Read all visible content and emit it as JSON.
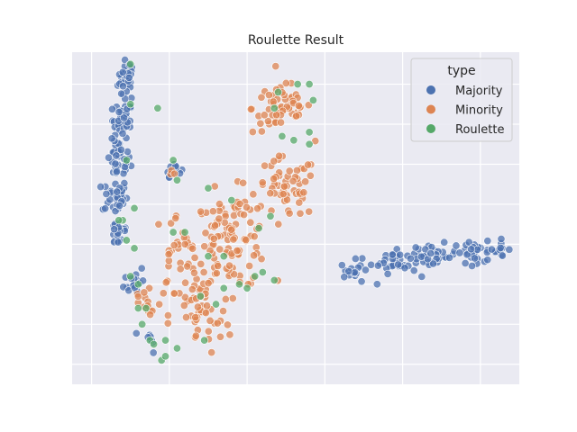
{
  "chart_data": {
    "type": "scatter",
    "title": "Roulette Result",
    "xlabel": "",
    "ylabel": "",
    "xlim": [
      -55,
      60
    ],
    "ylim": [
      -45,
      38
    ],
    "x_ticks": [
      -50,
      -30,
      -10,
      10,
      30,
      50
    ],
    "y_ticks": [
      -40,
      -30,
      -20,
      -10,
      0,
      10,
      20,
      30
    ],
    "tick_labels_visible": false,
    "grid": true,
    "legend": {
      "title": "type",
      "placement": "top-right"
    },
    "series": [
      {
        "name": "Majority",
        "color": "#4c72b0",
        "clusters": [
          {
            "cx": -41,
            "cy": 31,
            "sx": 1.1,
            "sy": 2.5,
            "n": 35
          },
          {
            "cx": -42,
            "cy": 21,
            "sx": 1.3,
            "sy": 2.2,
            "n": 30
          },
          {
            "cx": -43,
            "cy": 11,
            "sx": 1.5,
            "sy": 2.5,
            "n": 35
          },
          {
            "cx": -44,
            "cy": 2,
            "sx": 1.6,
            "sy": 2.2,
            "n": 35
          },
          {
            "cx": -43,
            "cy": -7,
            "sx": 1.3,
            "sy": 2.0,
            "n": 22
          },
          {
            "cx": -39,
            "cy": -19,
            "sx": 1.3,
            "sy": 2.0,
            "n": 16
          },
          {
            "cx": -35,
            "cy": -34,
            "sx": 1.0,
            "sy": 1.5,
            "n": 8
          },
          {
            "cx": -29,
            "cy": 9,
            "sx": 1.0,
            "sy": 1.0,
            "n": 10
          },
          {
            "cx": 18,
            "cy": -17,
            "sx": 2.0,
            "sy": 1.5,
            "n": 18
          },
          {
            "cx": 28,
            "cy": -14,
            "sx": 3.0,
            "sy": 1.6,
            "n": 35
          },
          {
            "cx": 38,
            "cy": -13,
            "sx": 3.0,
            "sy": 1.5,
            "n": 30
          },
          {
            "cx": 49,
            "cy": -12,
            "sx": 3.0,
            "sy": 1.3,
            "n": 28
          },
          {
            "cx": 55,
            "cy": -11,
            "sx": 1.3,
            "sy": 1.0,
            "n": 10
          }
        ]
      },
      {
        "name": "Minority",
        "color": "#dd8452",
        "clusters": [
          {
            "cx": -1,
            "cy": 24,
            "sx": 3.8,
            "sy": 3.2,
            "n": 60
          },
          {
            "cx": 0,
            "cy": 4,
            "sx": 4.0,
            "sy": 3.8,
            "n": 55
          },
          {
            "cx": -14,
            "cy": -9,
            "sx": 5.0,
            "sy": 6.0,
            "n": 110
          },
          {
            "cx": -28,
            "cy": -13,
            "sx": 3.0,
            "sy": 5.5,
            "n": 35
          },
          {
            "cx": -22,
            "cy": -28,
            "sx": 4.0,
            "sy": 5.0,
            "n": 45
          },
          {
            "cx": -36,
            "cy": -25,
            "sx": 2.0,
            "sy": 3.0,
            "n": 14
          },
          {
            "cx": -29,
            "cy": 8,
            "sx": 0.8,
            "sy": 0.6,
            "n": 3
          }
        ]
      },
      {
        "name": "Roulette",
        "color": "#55a868",
        "points": [
          [
            -40,
            35
          ],
          [
            -40,
            25
          ],
          [
            -33,
            24
          ],
          [
            -3,
            24
          ],
          [
            -2,
            28
          ],
          [
            3,
            30
          ],
          [
            6,
            30
          ],
          [
            7,
            26
          ],
          [
            -29,
            11
          ],
          [
            -28,
            6
          ],
          [
            -41,
            11
          ],
          [
            -39,
            -1
          ],
          [
            -42,
            -4
          ],
          [
            -41,
            -9
          ],
          [
            -43,
            -4
          ],
          [
            -39,
            -11
          ],
          [
            -40,
            -18
          ],
          [
            -38,
            -20
          ],
          [
            -38,
            -26
          ],
          [
            -36,
            -26
          ],
          [
            -37,
            -30
          ],
          [
            -35,
            -34
          ],
          [
            -34,
            -35
          ],
          [
            -28,
            -36
          ],
          [
            -32,
            -39
          ],
          [
            -31,
            -38
          ],
          [
            -31,
            -34
          ],
          [
            -21,
            -34
          ],
          [
            -12,
            -20
          ],
          [
            -16,
            -21
          ],
          [
            -22,
            -23
          ],
          [
            -18,
            -25
          ],
          [
            -16,
            -13
          ],
          [
            -20,
            -13
          ],
          [
            -29,
            -7
          ],
          [
            -26,
            -7
          ],
          [
            -20,
            4
          ],
          [
            -14,
            1
          ],
          [
            -7,
            -6
          ],
          [
            -8,
            -18
          ],
          [
            -10,
            -21
          ],
          [
            -4,
            -3
          ],
          [
            -6,
            -17
          ],
          [
            -3,
            -19
          ],
          [
            -1,
            17
          ],
          [
            2,
            16
          ],
          [
            6,
            15
          ],
          [
            6,
            18
          ]
        ]
      }
    ]
  }
}
